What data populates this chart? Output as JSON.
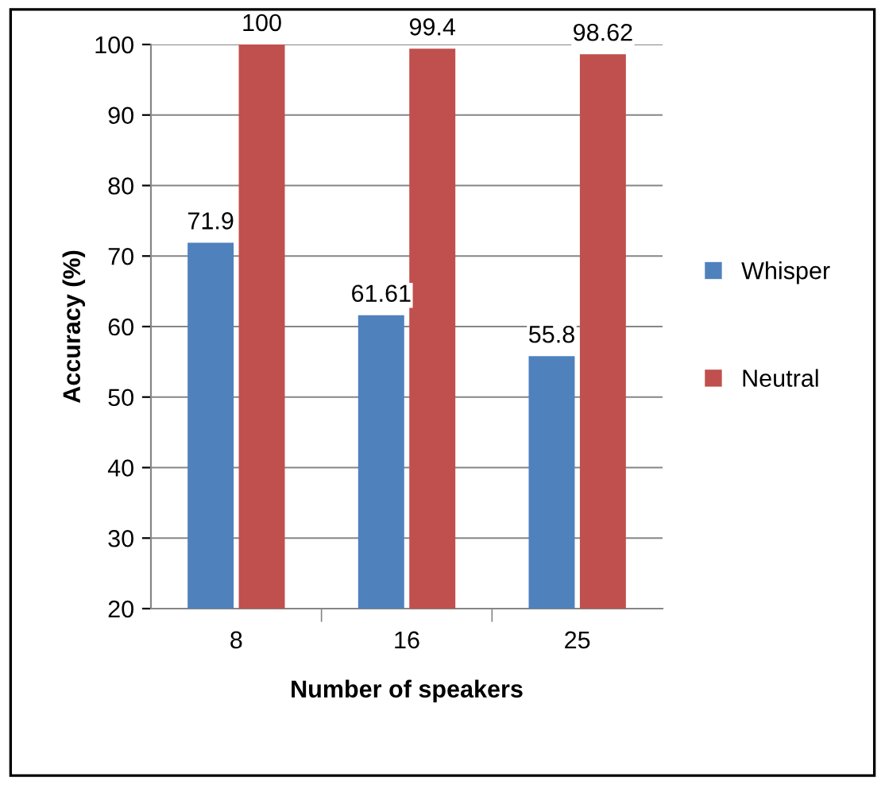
{
  "chart_data": {
    "type": "bar",
    "xlabel": "Number of speakers",
    "ylabel": "Accuracy (%)",
    "categories": [
      "8",
      "16",
      "25"
    ],
    "series": [
      {
        "name": "Whisper",
        "color": "#4f81bd",
        "values": [
          71.9,
          61.61,
          55.8
        ]
      },
      {
        "name": "Neutral",
        "color": "#c0504d",
        "values": [
          100,
          99.4,
          98.62
        ]
      }
    ],
    "ylim": [
      20,
      100
    ],
    "yticks": [
      20,
      30,
      40,
      50,
      60,
      70,
      80,
      90,
      100
    ],
    "grid": "y",
    "legend": "right",
    "data_labels": true
  }
}
